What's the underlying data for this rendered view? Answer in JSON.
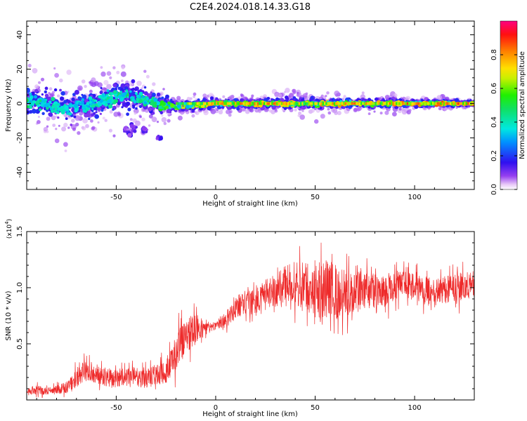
{
  "title": "C2E4.2024.018.14.33.G18",
  "chart_data": [
    {
      "type": "heatmap",
      "xlabel": "Height of straight line (km)",
      "ylabel": "Frequency (Hz)",
      "xlim": [
        -95,
        130
      ],
      "ylim": [
        -50,
        48
      ],
      "x_ticks": [
        -50,
        0,
        50,
        100
      ],
      "y_ticks": [
        -40,
        -20,
        0,
        20,
        40
      ],
      "colorbar": {
        "label": "Normalized spectral amplitude",
        "range": [
          0,
          1
        ],
        "ticks": [
          "0.0",
          "0.2",
          "0.4",
          "0.6",
          "0.8"
        ]
      },
      "profile": {
        "x": [
          -95,
          -85,
          -80,
          -75,
          -70,
          -65,
          -60,
          -55,
          -50,
          -45,
          -40,
          -35,
          -30,
          -25,
          -20,
          -10,
          0,
          10,
          20,
          30,
          40,
          50,
          60,
          70,
          80,
          90,
          100,
          110,
          120,
          130
        ],
        "center_freq": [
          2,
          0,
          -2,
          -3,
          -2,
          -1,
          0,
          2,
          4,
          5,
          3,
          2,
          0,
          -1,
          -2,
          -1,
          0,
          0,
          0,
          0,
          0,
          0,
          0,
          0,
          0,
          0,
          0,
          0,
          0,
          0
        ],
        "spread": [
          8,
          9,
          10,
          10,
          9,
          9,
          9,
          10,
          11,
          11,
          10,
          8,
          6,
          5,
          3,
          3,
          3,
          3,
          3,
          3,
          4,
          4,
          3,
          3,
          3,
          3,
          2,
          2,
          2,
          2
        ],
        "peak_amplitude": [
          0.5,
          0.45,
          0.45,
          0.4,
          0.4,
          0.4,
          0.45,
          0.45,
          0.5,
          0.5,
          0.5,
          0.5,
          0.55,
          0.6,
          0.7,
          0.75,
          0.85,
          0.85,
          0.85,
          0.85,
          0.8,
          0.8,
          0.85,
          0.85,
          0.85,
          0.9,
          0.9,
          0.9,
          0.9,
          0.9
        ]
      },
      "side_blobs": {
        "x": [
          -45,
          -43,
          -41,
          -36,
          -28
        ],
        "freq": [
          -15,
          -17,
          -14,
          -15,
          -20
        ]
      }
    },
    {
      "type": "line",
      "xlabel": "Height of straight line (km)",
      "ylabel": "SNR (10 * v/v)",
      "y_multiplier": "(x10",
      "y_multiplier_exp": "4",
      "y_multiplier_close": ")",
      "xlim": [
        -95,
        130
      ],
      "ylim": [
        0,
        15000
      ],
      "x_ticks": [
        -50,
        0,
        50,
        100
      ],
      "y_ticks": [
        5000,
        10000,
        15000
      ],
      "y_tick_labels": [
        "0.5",
        "1.0",
        "1.5"
      ],
      "color": "#ee2a2a",
      "envelope": {
        "x": [
          -95,
          -90,
          -85,
          -80,
          -75,
          -70,
          -65,
          -60,
          -55,
          -50,
          -45,
          -40,
          -35,
          -30,
          -25,
          -20,
          -15,
          -10,
          -5,
          0,
          5,
          10,
          15,
          20,
          25,
          30,
          35,
          40,
          45,
          50,
          55,
          60,
          65,
          70,
          75,
          80,
          85,
          90,
          95,
          100,
          105,
          110,
          115,
          120,
          125,
          130
        ],
        "mid": [
          800,
          900,
          800,
          900,
          1100,
          2000,
          2700,
          2300,
          2000,
          1900,
          2000,
          2000,
          2000,
          2200,
          2600,
          4200,
          5800,
          6200,
          6500,
          6600,
          7200,
          8200,
          8800,
          8600,
          9500,
          9500,
          10200,
          10200,
          10000,
          10000,
          9800,
          9500,
          9500,
          9500,
          9700,
          9800,
          9700,
          10200,
          10300,
          10000,
          9800,
          9500,
          9800,
          10000,
          10200,
          10300
        ],
        "amp": [
          600,
          700,
          600,
          700,
          900,
          1600,
          1800,
          1600,
          1500,
          1500,
          1500,
          1600,
          1700,
          1700,
          2200,
          3200,
          3000,
          2400,
          1200,
          600,
          1500,
          1800,
          2000,
          2200,
          2200,
          2800,
          3400,
          4000,
          4200,
          4800,
          5000,
          4800,
          3800,
          3200,
          3000,
          2900,
          2800,
          2500,
          2200,
          2300,
          2300,
          2200,
          2200,
          2300,
          2500,
          2400
        ]
      }
    }
  ]
}
